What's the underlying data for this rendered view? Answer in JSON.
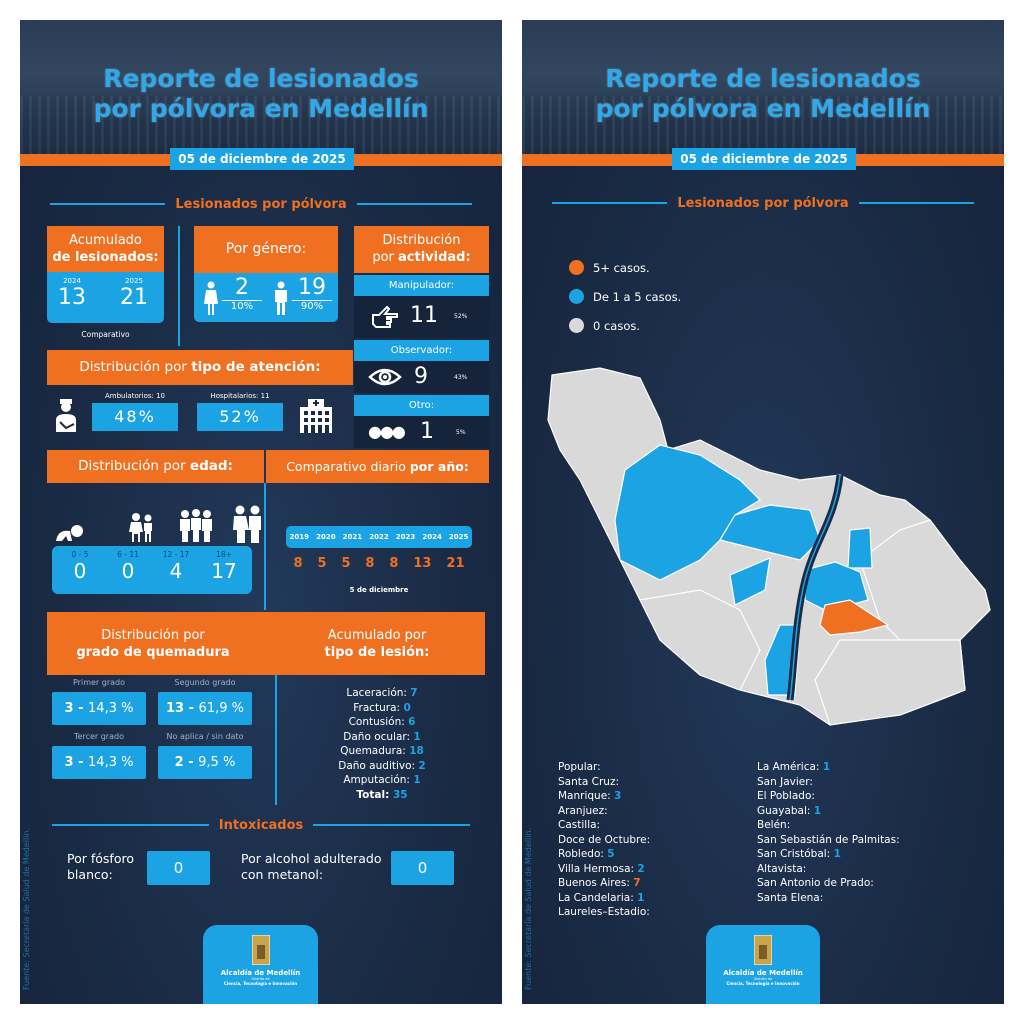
{
  "title_line1": "Reporte de lesionados",
  "title_line2": "por pólvora en Medellín",
  "date": "05 de diciembre de 2025",
  "section_title": "Lesionados por pólvora",
  "colors": {
    "orange": "#f07021",
    "blue": "#1ca3e4",
    "background": "#1a2b45",
    "no_cases": "#d9d9d9"
  },
  "acumulado": {
    "title1": "Acumulado",
    "title2": "de lesionados:",
    "year1": "2024",
    "value1": "13",
    "year2": "2025",
    "value2": "21",
    "note": "Comparativo"
  },
  "genero": {
    "title": "Por género:",
    "female_icon": "woman-icon",
    "female_value": "2",
    "female_pct": "10%",
    "male_icon": "man-icon",
    "male_value": "19",
    "male_pct": "90%"
  },
  "actividad": {
    "title1": "Distribución",
    "title2_pre": "por ",
    "title2_bold": "actividad:",
    "items": [
      {
        "label": "Manipulador:",
        "icon": "pointing-hand-icon",
        "value": "11",
        "pct": "52%"
      },
      {
        "label": "Observador:",
        "icon": "eye-icon",
        "value": "9",
        "pct": "43%"
      },
      {
        "label": "Otro:",
        "icon": "dots-icon",
        "value": "1",
        "pct": "5%"
      }
    ]
  },
  "atencion": {
    "title_pre": "Distribución por ",
    "title_bold": "tipo de atención:",
    "amb_label": "Ambulatorios: 10",
    "amb_pct": "48%",
    "hosp_label": "Hospitalarios: 11",
    "hosp_pct": "52%"
  },
  "edad": {
    "title_pre": "Distribución por ",
    "title_bold": "edad:",
    "groups": [
      {
        "range": "0 - 5",
        "value": "0"
      },
      {
        "range": "6 - 11",
        "value": "0"
      },
      {
        "range": "12 - 17",
        "value": "4"
      },
      {
        "range": "18+",
        "value": "17"
      }
    ]
  },
  "diario": {
    "title_pre": "Comparativo diario ",
    "title_bold": "por año:",
    "years": [
      "2019",
      "2020",
      "2021",
      "2022",
      "2023",
      "2024",
      "2025"
    ],
    "values": [
      "8",
      "5",
      "5",
      "8",
      "8",
      "13",
      "21"
    ],
    "note": "5 de diciembre"
  },
  "quemadura": {
    "title1": "Distribución por",
    "title2": "grado de quemadura",
    "grades": [
      {
        "label": "Primer grado",
        "count": "3",
        "pct": "14,3 %"
      },
      {
        "label": "Segundo grado",
        "count": "13",
        "pct": "61,9 %"
      },
      {
        "label": "Tercer grado",
        "count": "3",
        "pct": "14,3 %"
      },
      {
        "label": "No aplica / sin dato",
        "count": "2",
        "pct": "9,5 %"
      }
    ]
  },
  "lesion": {
    "title1": "Acumulado por",
    "title2": "tipo de lesión:",
    "items": [
      {
        "label": "Laceración:",
        "value": "7"
      },
      {
        "label": "Fractura:",
        "value": "0"
      },
      {
        "label": "Contusión:",
        "value": "6"
      },
      {
        "label": "Daño ocular:",
        "value": "1"
      },
      {
        "label": "Quemadura:",
        "value": "18"
      },
      {
        "label": "Daño auditivo:",
        "value": "2"
      },
      {
        "label": "Amputación:",
        "value": "1"
      }
    ],
    "total_label": "Total:",
    "total_value": "35"
  },
  "intoxicados": {
    "title": "Intoxicados",
    "fosforo_label1": "Por fósforo",
    "fosforo_label2": "blanco:",
    "fosforo_value": "0",
    "metanol_label1": "Por alcohol adulterado",
    "metanol_label2": "con metanol:",
    "metanol_value": "0"
  },
  "logo": {
    "name": "Alcaldía de Medellín",
    "sub1": "Distrito de",
    "sub2": "Ciencia, Tecnología e Innovación"
  },
  "source": "Fuente: Secretaría de Salud de Medellín.",
  "legend": [
    {
      "label": "5+ casos.",
      "color": "#f07021"
    },
    {
      "label": "De 1 a 5 casos.",
      "color": "#1ca3e4"
    },
    {
      "label": "0 casos.",
      "color": "#d9d9d9"
    }
  ],
  "comunas_col1": [
    {
      "name": "Popular:",
      "value": ""
    },
    {
      "name": "Santa Cruz:",
      "value": ""
    },
    {
      "name": "Manrique:",
      "value": "3"
    },
    {
      "name": "Aranjuez:",
      "value": ""
    },
    {
      "name": "Castilla:",
      "value": ""
    },
    {
      "name": "Doce de Octubre:",
      "value": ""
    },
    {
      "name": "Robledo:",
      "value": "5"
    },
    {
      "name": "Villa Hermosa:",
      "value": "2"
    },
    {
      "name": "Buenos Aires:",
      "value": "7",
      "highlight": "#f07021"
    },
    {
      "name": "La Candelaria:",
      "value": "1"
    },
    {
      "name": "Laureles–Estadio:",
      "value": ""
    }
  ],
  "comunas_col2": [
    {
      "name": "La América:",
      "value": "1"
    },
    {
      "name": "San Javier:",
      "value": ""
    },
    {
      "name": "El Poblado:",
      "value": ""
    },
    {
      "name": "Guayabal:",
      "value": "1"
    },
    {
      "name": "Belén:",
      "value": ""
    },
    {
      "name": "San Sebastián de Palmitas:",
      "value": ""
    },
    {
      "name": "San Cristóbal:",
      "value": "1"
    },
    {
      "name": "Altavista:",
      "value": ""
    },
    {
      "name": "San Antonio de Prado:",
      "value": ""
    },
    {
      "name": "Santa Elena:",
      "value": ""
    }
  ]
}
